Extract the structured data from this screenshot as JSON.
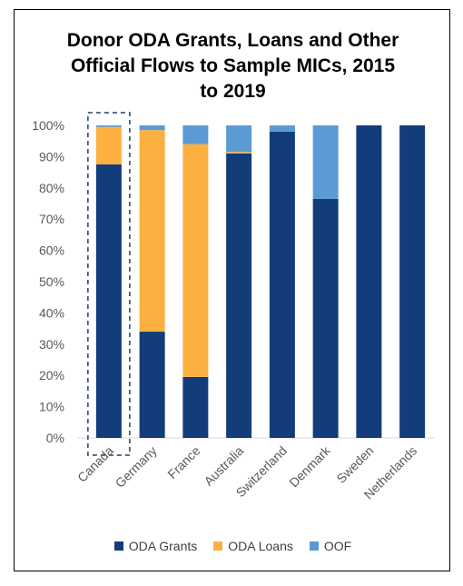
{
  "chart_data": {
    "type": "bar",
    "stacked": true,
    "title_lines": [
      "Donor ODA Grants, Loans and Other",
      "Official Flows to Sample MICs, 2015",
      "to 2019"
    ],
    "categories": [
      "Canada",
      "Germany",
      "France",
      "Australia",
      "Switzerland",
      "Denmark",
      "Sweden",
      "Netherlands"
    ],
    "series": [
      {
        "name": "ODA Grants",
        "color": "#133d7a",
        "values": [
          87.5,
          34,
          19.5,
          91,
          98,
          76.5,
          100,
          100
        ]
      },
      {
        "name": "ODA Loans",
        "color": "#fbb040",
        "values": [
          12,
          64.5,
          74.5,
          0.5,
          0,
          0,
          0,
          0
        ]
      },
      {
        "name": "OOF",
        "color": "#5b9bd5",
        "values": [
          0.5,
          1.5,
          6,
          8.5,
          2,
          23.5,
          0,
          0
        ]
      }
    ],
    "ylim": [
      0,
      100
    ],
    "yticks": [
      "0%",
      "10%",
      "20%",
      "30%",
      "40%",
      "50%",
      "60%",
      "70%",
      "80%",
      "90%",
      "100%"
    ],
    "grid": false,
    "legend_position": "bottom",
    "highlighted_category": "Canada"
  }
}
